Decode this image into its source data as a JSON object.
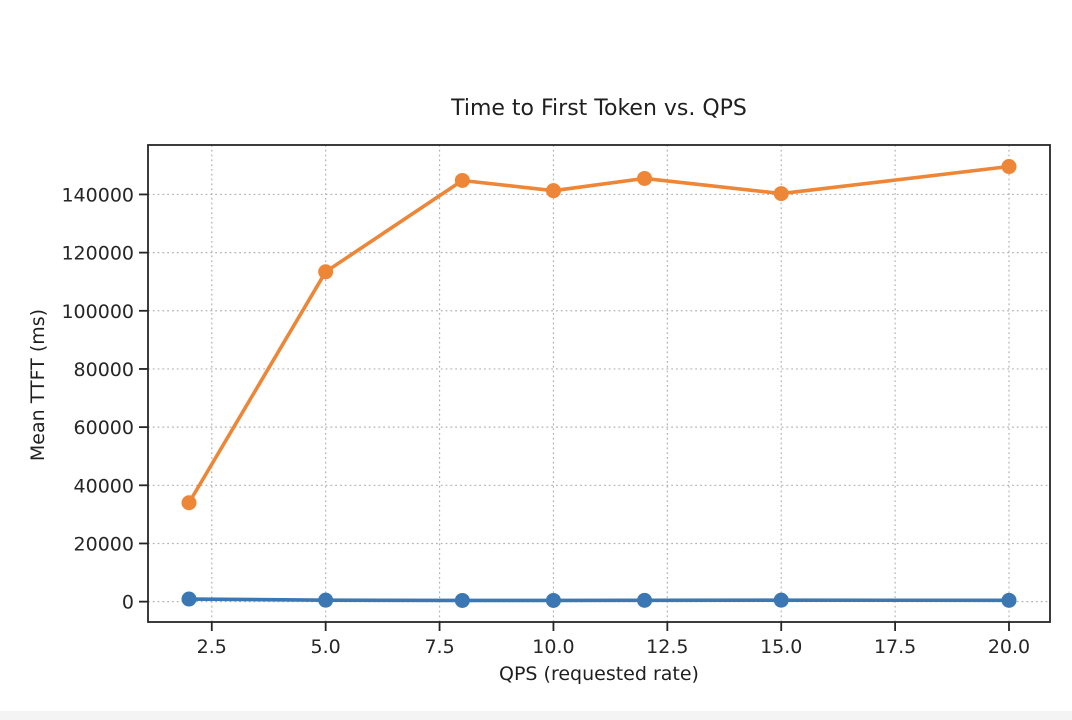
{
  "page": {
    "background": "#ffffff",
    "bottom_strip_color": "#f4f4f5"
  },
  "chart_data": {
    "type": "line",
    "title": "Time to First Token vs. QPS",
    "xlabel": "QPS (requested rate)",
    "ylabel": "Mean TTFT (ms)",
    "x": [
      2,
      5,
      8,
      10,
      12,
      15,
      20
    ],
    "series": [
      {
        "name": "blue-series",
        "color": "#3b78b3",
        "values": [
          900,
          500,
          400,
          400,
          450,
          500,
          450
        ]
      },
      {
        "name": "orange-series",
        "color": "#ee8638",
        "values": [
          34000,
          113400,
          144800,
          141300,
          145500,
          140300,
          149600
        ]
      }
    ],
    "xticks": [
      2.5,
      5.0,
      7.5,
      10.0,
      12.5,
      15.0,
      17.5,
      20.0
    ],
    "xtick_labels": [
      "2.5",
      "5.0",
      "7.5",
      "10.0",
      "12.5",
      "15.0",
      "17.5",
      "20.0"
    ],
    "yticks": [
      0,
      20000,
      40000,
      60000,
      80000,
      100000,
      120000,
      140000
    ],
    "ytick_labels": [
      "0",
      "20000",
      "40000",
      "60000",
      "80000",
      "100000",
      "120000",
      "140000"
    ],
    "xlim": [
      1.1,
      20.9
    ],
    "ylim": [
      -7000,
      157000
    ],
    "grid": true,
    "legend": "none",
    "grid_color": "#b3b3b3",
    "axis_color": "#262626",
    "marker_radius": 7.5,
    "line_width": 3.6
  }
}
